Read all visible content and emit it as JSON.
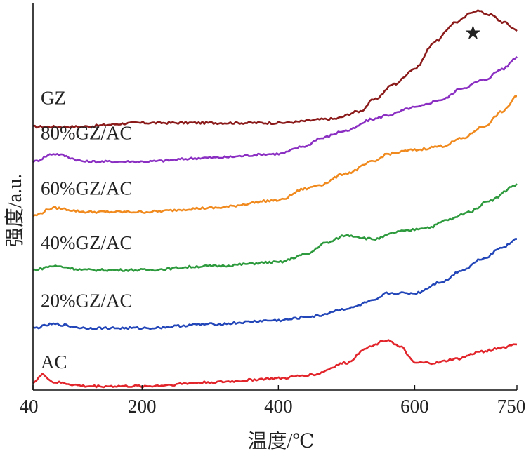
{
  "chart_data": {
    "type": "line",
    "title": "",
    "xlabel": "温度/℃",
    "ylabel": "强度/a.u.",
    "xlim": [
      40,
      750
    ],
    "x_ticks": [
      40,
      200,
      400,
      600,
      750
    ],
    "y_ticks_shown": false,
    "grid": false,
    "legend": "labels-inline-left",
    "marker_symbol": "★",
    "marker_note_x": 700,
    "series": [
      {
        "name": "GZ",
        "color": "#8b1a1a",
        "points": [
          [
            40,
            0.68
          ],
          [
            100,
            0.68
          ],
          [
            200,
            0.69
          ],
          [
            300,
            0.69
          ],
          [
            400,
            0.69
          ],
          [
            480,
            0.7
          ],
          [
            520,
            0.72
          ],
          [
            540,
            0.75
          ],
          [
            570,
            0.79
          ],
          [
            600,
            0.83
          ],
          [
            630,
            0.9
          ],
          [
            660,
            0.95
          ],
          [
            690,
            0.98
          ],
          [
            710,
            0.97
          ],
          [
            730,
            0.95
          ],
          [
            750,
            0.93
          ]
        ]
      },
      {
        "name": "80%GZ/AC",
        "color": "#8a2fc2",
        "points": [
          [
            40,
            0.59
          ],
          [
            70,
            0.61
          ],
          [
            120,
            0.59
          ],
          [
            200,
            0.59
          ],
          [
            300,
            0.6
          ],
          [
            400,
            0.61
          ],
          [
            440,
            0.63
          ],
          [
            460,
            0.65
          ],
          [
            500,
            0.67
          ],
          [
            540,
            0.7
          ],
          [
            560,
            0.71
          ],
          [
            600,
            0.73
          ],
          [
            640,
            0.75
          ],
          [
            670,
            0.78
          ],
          [
            700,
            0.8
          ],
          [
            730,
            0.83
          ],
          [
            750,
            0.86
          ]
        ]
      },
      {
        "name": "60%GZ/AC",
        "color": "#f08a1e",
        "points": [
          [
            40,
            0.45
          ],
          [
            70,
            0.47
          ],
          [
            120,
            0.46
          ],
          [
            200,
            0.46
          ],
          [
            300,
            0.47
          ],
          [
            400,
            0.49
          ],
          [
            440,
            0.52
          ],
          [
            460,
            0.53
          ],
          [
            500,
            0.56
          ],
          [
            540,
            0.59
          ],
          [
            560,
            0.61
          ],
          [
            600,
            0.62
          ],
          [
            640,
            0.63
          ],
          [
            670,
            0.65
          ],
          [
            700,
            0.68
          ],
          [
            730,
            0.72
          ],
          [
            750,
            0.76
          ]
        ]
      },
      {
        "name": "40%GZ/AC",
        "color": "#2e9a3e",
        "points": [
          [
            40,
            0.31
          ],
          [
            70,
            0.32
          ],
          [
            120,
            0.31
          ],
          [
            200,
            0.31
          ],
          [
            300,
            0.32
          ],
          [
            400,
            0.33
          ],
          [
            440,
            0.35
          ],
          [
            470,
            0.38
          ],
          [
            500,
            0.4
          ],
          [
            540,
            0.39
          ],
          [
            580,
            0.41
          ],
          [
            620,
            0.42
          ],
          [
            650,
            0.44
          ],
          [
            680,
            0.46
          ],
          [
            710,
            0.49
          ],
          [
            750,
            0.53
          ]
        ]
      },
      {
        "name": "20%GZ/AC",
        "color": "#2346b8",
        "points": [
          [
            40,
            0.16
          ],
          [
            70,
            0.17
          ],
          [
            120,
            0.16
          ],
          [
            200,
            0.16
          ],
          [
            300,
            0.17
          ],
          [
            400,
            0.18
          ],
          [
            450,
            0.19
          ],
          [
            500,
            0.21
          ],
          [
            540,
            0.23
          ],
          [
            560,
            0.25
          ],
          [
            600,
            0.25
          ],
          [
            640,
            0.28
          ],
          [
            670,
            0.31
          ],
          [
            700,
            0.34
          ],
          [
            730,
            0.37
          ],
          [
            750,
            0.39
          ]
        ]
      },
      {
        "name": "AC",
        "color": "#e2242b",
        "points": [
          [
            40,
            0.02
          ],
          [
            55,
            0.04
          ],
          [
            70,
            0.02
          ],
          [
            120,
            0.01
          ],
          [
            200,
            0.01
          ],
          [
            300,
            0.02
          ],
          [
            400,
            0.03
          ],
          [
            450,
            0.04
          ],
          [
            500,
            0.07
          ],
          [
            530,
            0.11
          ],
          [
            560,
            0.13
          ],
          [
            580,
            0.11
          ],
          [
            600,
            0.07
          ],
          [
            630,
            0.07
          ],
          [
            660,
            0.08
          ],
          [
            700,
            0.1
          ],
          [
            730,
            0.11
          ],
          [
            750,
            0.12
          ]
        ]
      }
    ]
  }
}
